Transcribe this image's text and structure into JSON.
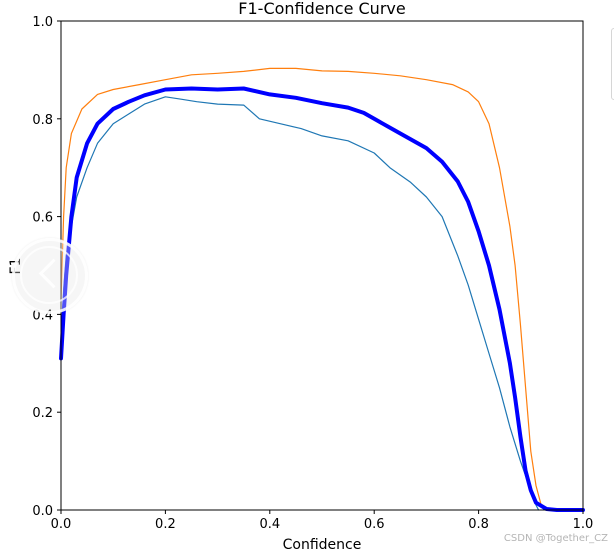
{
  "chart_data": {
    "type": "line",
    "title": "F1-Confidence Curve",
    "xlabel": "Confidence",
    "ylabel": "F1",
    "xlim": [
      0.0,
      1.0
    ],
    "ylim": [
      0.0,
      1.0
    ],
    "xticks": [
      "0.0",
      "0.2",
      "0.4",
      "0.6",
      "0.8",
      "1.0"
    ],
    "yticks": [
      "0.0",
      "0.2",
      "0.4",
      "0.6",
      "0.8",
      "1.0"
    ],
    "grid": false,
    "series": [
      {
        "color": "#1f77b4",
        "width": 1.2,
        "points": [
          [
            0.0,
            0.33
          ],
          [
            0.005,
            0.45
          ],
          [
            0.01,
            0.52
          ],
          [
            0.02,
            0.58
          ],
          [
            0.03,
            0.64
          ],
          [
            0.05,
            0.7
          ],
          [
            0.07,
            0.75
          ],
          [
            0.1,
            0.79
          ],
          [
            0.13,
            0.81
          ],
          [
            0.16,
            0.83
          ],
          [
            0.2,
            0.845
          ],
          [
            0.23,
            0.84
          ],
          [
            0.26,
            0.835
          ],
          [
            0.3,
            0.83
          ],
          [
            0.35,
            0.828
          ],
          [
            0.38,
            0.8
          ],
          [
            0.42,
            0.79
          ],
          [
            0.46,
            0.78
          ],
          [
            0.5,
            0.765
          ],
          [
            0.55,
            0.755
          ],
          [
            0.6,
            0.73
          ],
          [
            0.63,
            0.7
          ],
          [
            0.67,
            0.67
          ],
          [
            0.7,
            0.64
          ],
          [
            0.73,
            0.6
          ],
          [
            0.76,
            0.52
          ],
          [
            0.78,
            0.46
          ],
          [
            0.8,
            0.39
          ],
          [
            0.82,
            0.32
          ],
          [
            0.84,
            0.25
          ],
          [
            0.86,
            0.17
          ],
          [
            0.88,
            0.1
          ],
          [
            0.9,
            0.04
          ],
          [
            0.91,
            0.01
          ],
          [
            0.915,
            0.0
          ]
        ]
      },
      {
        "color": "#ff7f0e",
        "width": 1.2,
        "points": [
          [
            0.0,
            0.43
          ],
          [
            0.005,
            0.6
          ],
          [
            0.01,
            0.7
          ],
          [
            0.02,
            0.77
          ],
          [
            0.04,
            0.82
          ],
          [
            0.07,
            0.85
          ],
          [
            0.1,
            0.86
          ],
          [
            0.15,
            0.87
          ],
          [
            0.2,
            0.88
          ],
          [
            0.25,
            0.89
          ],
          [
            0.3,
            0.893
          ],
          [
            0.35,
            0.897
          ],
          [
            0.4,
            0.903
          ],
          [
            0.45,
            0.903
          ],
          [
            0.5,
            0.898
          ],
          [
            0.55,
            0.897
          ],
          [
            0.6,
            0.893
          ],
          [
            0.65,
            0.888
          ],
          [
            0.7,
            0.88
          ],
          [
            0.75,
            0.87
          ],
          [
            0.78,
            0.855
          ],
          [
            0.8,
            0.835
          ],
          [
            0.82,
            0.79
          ],
          [
            0.84,
            0.7
          ],
          [
            0.86,
            0.58
          ],
          [
            0.87,
            0.5
          ],
          [
            0.88,
            0.38
          ],
          [
            0.89,
            0.25
          ],
          [
            0.9,
            0.12
          ],
          [
            0.91,
            0.05
          ],
          [
            0.92,
            0.01
          ],
          [
            0.93,
            0.0
          ]
        ]
      },
      {
        "color": "#0000ff",
        "width": 4,
        "points": [
          [
            0.0,
            0.31
          ],
          [
            0.005,
            0.4
          ],
          [
            0.01,
            0.48
          ],
          [
            0.02,
            0.6
          ],
          [
            0.03,
            0.68
          ],
          [
            0.05,
            0.75
          ],
          [
            0.07,
            0.79
          ],
          [
            0.1,
            0.82
          ],
          [
            0.13,
            0.835
          ],
          [
            0.16,
            0.848
          ],
          [
            0.2,
            0.86
          ],
          [
            0.25,
            0.862
          ],
          [
            0.3,
            0.86
          ],
          [
            0.35,
            0.862
          ],
          [
            0.4,
            0.85
          ],
          [
            0.45,
            0.843
          ],
          [
            0.5,
            0.832
          ],
          [
            0.55,
            0.823
          ],
          [
            0.58,
            0.812
          ],
          [
            0.6,
            0.8
          ],
          [
            0.65,
            0.77
          ],
          [
            0.7,
            0.74
          ],
          [
            0.73,
            0.712
          ],
          [
            0.76,
            0.672
          ],
          [
            0.78,
            0.63
          ],
          [
            0.8,
            0.57
          ],
          [
            0.82,
            0.5
          ],
          [
            0.84,
            0.41
          ],
          [
            0.86,
            0.3
          ],
          [
            0.87,
            0.23
          ],
          [
            0.88,
            0.15
          ],
          [
            0.89,
            0.08
          ],
          [
            0.9,
            0.04
          ],
          [
            0.91,
            0.015
          ],
          [
            0.93,
            0.002
          ],
          [
            0.95,
            0.0
          ],
          [
            1.0,
            0.0
          ]
        ]
      }
    ]
  },
  "watermark": "CSDN @Together_CZ"
}
